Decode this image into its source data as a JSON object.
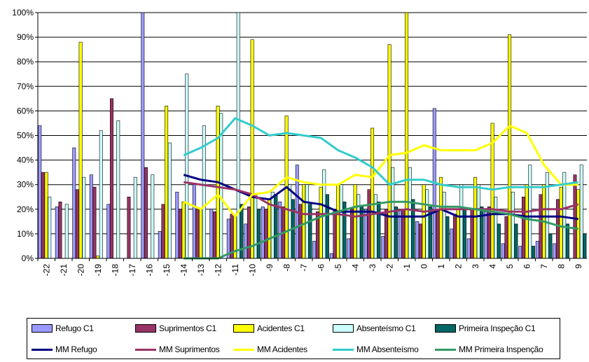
{
  "chart_data": {
    "type": "bar",
    "categories": [
      "-22",
      "-21",
      "-20",
      "-19",
      "-18",
      "-17",
      "-16",
      "-15",
      "-14",
      "-13",
      "-12",
      "-11",
      "-10",
      "-9",
      "-8",
      "-7",
      "-6",
      "-5",
      "-4",
      "-3",
      "-2",
      "-1",
      "0",
      "1",
      "2",
      "3",
      "4",
      "5",
      "6",
      "7",
      "8",
      "9"
    ],
    "y_ticks": [
      "0%",
      "10%",
      "20%",
      "30%",
      "40%",
      "50%",
      "60%",
      "70%",
      "80%",
      "90%",
      "100%"
    ],
    "ylim": [
      0,
      1
    ],
    "grid": true,
    "legend_position": "bottom",
    "series": [
      {
        "name": "Refugo C1",
        "kind": "bar",
        "color": "#9999ff",
        "values": [
          0.54,
          0.21,
          0.45,
          0.34,
          0.22,
          null,
          1.0,
          0.11,
          0.27,
          0.3,
          0.2,
          0.16,
          0.14,
          0.21,
          0.23,
          0.38,
          0.07,
          0.02,
          0.08,
          0.2,
          0.09,
          0.2,
          0.15,
          0.61,
          0.12,
          0.08,
          0.19,
          0.06,
          0.05,
          0.07,
          0.06,
          null
        ]
      },
      {
        "name": "Suprimentos C1",
        "kind": "bar",
        "color": "#993366",
        "values": [
          0.35,
          0.23,
          0.28,
          0.29,
          0.65,
          0.25,
          0.37,
          0.22,
          0.2,
          0.2,
          0.19,
          0.18,
          0.21,
          0.2,
          0.21,
          0.22,
          0.19,
          0.2,
          0.2,
          0.28,
          0.2,
          0.2,
          0.14,
          0.2,
          0.18,
          0.2,
          0.21,
          0.17,
          0.25,
          0.26,
          0.24,
          0.34
        ]
      },
      {
        "name": "Acidentes C1",
        "kind": "bar",
        "color": "#ffff00",
        "values": [
          0.35,
          null,
          0.88,
          0.01,
          null,
          null,
          null,
          0.62,
          0.23,
          0.2,
          0.62,
          0.17,
          0.89,
          0.24,
          0.58,
          0.3,
          0.29,
          0.3,
          0.3,
          0.53,
          0.87,
          1.0,
          0.3,
          0.33,
          0.2,
          0.33,
          0.55,
          0.91,
          0.3,
          0.3,
          0.29,
          0.28
        ]
      },
      {
        "name": "Absenteísmo C1",
        "kind": "bar",
        "color": "#ccffff",
        "values": [
          0.25,
          0.22,
          0.33,
          0.52,
          0.56,
          0.33,
          0.34,
          0.47,
          0.75,
          0.54,
          0.59,
          1.0,
          0.26,
          0.27,
          0.3,
          0.3,
          0.36,
          0.3,
          0.26,
          0.26,
          0.37,
          0.37,
          0.28,
          0.27,
          0.3,
          0.3,
          0.25,
          0.27,
          0.38,
          0.35,
          0.35,
          0.38
        ]
      },
      {
        "name": "Primeira Inspeção C1",
        "kind": "bar",
        "color": "#006666",
        "values": [
          null,
          null,
          null,
          null,
          null,
          null,
          null,
          null,
          null,
          null,
          null,
          0.22,
          0.2,
          0.26,
          0.24,
          0.22,
          0.26,
          0.23,
          0.21,
          0.23,
          0.21,
          0.24,
          0.21,
          0.17,
          0.2,
          0.21,
          0.14,
          0.14,
          0.05,
          0.1,
          0.14,
          0.1
        ]
      },
      {
        "name": "MM Refugo",
        "kind": "line",
        "color": "#000080",
        "values": [
          null,
          null,
          null,
          null,
          null,
          null,
          null,
          null,
          0.34,
          0.32,
          0.31,
          0.28,
          0.25,
          0.24,
          0.29,
          0.23,
          0.22,
          0.19,
          0.19,
          0.19,
          0.17,
          0.17,
          0.17,
          0.2,
          0.17,
          0.17,
          0.18,
          0.18,
          0.17,
          0.17,
          0.17,
          0.16
        ]
      },
      {
        "name": "MM Suprimentos",
        "kind": "line",
        "color": "#993366",
        "values": [
          null,
          null,
          null,
          null,
          null,
          null,
          null,
          null,
          0.31,
          0.3,
          0.29,
          0.28,
          0.26,
          0.22,
          0.2,
          0.18,
          0.18,
          0.18,
          0.17,
          0.18,
          0.19,
          0.2,
          0.19,
          0.2,
          0.2,
          0.2,
          0.2,
          0.19,
          0.19,
          0.2,
          0.2,
          0.22
        ]
      },
      {
        "name": "MM Acidentes",
        "kind": "line",
        "color": "#ffff00",
        "values": [
          null,
          null,
          null,
          null,
          null,
          null,
          null,
          null,
          0.23,
          0.2,
          0.26,
          0.17,
          0.26,
          0.27,
          0.33,
          0.31,
          0.3,
          0.3,
          0.34,
          0.33,
          0.42,
          0.43,
          0.46,
          0.44,
          0.44,
          0.44,
          0.47,
          0.54,
          0.51,
          0.38,
          0.3,
          0.3
        ]
      },
      {
        "name": "MM Absenteísmo",
        "kind": "line",
        "color": "#33cccc",
        "values": [
          null,
          null,
          null,
          null,
          null,
          null,
          null,
          null,
          0.42,
          0.45,
          0.49,
          0.57,
          0.54,
          0.5,
          0.51,
          0.5,
          0.49,
          0.44,
          0.41,
          0.37,
          0.3,
          0.32,
          0.32,
          0.3,
          0.29,
          0.29,
          0.28,
          0.29,
          0.29,
          0.29,
          0.3,
          0.31
        ]
      },
      {
        "name": "MM Primeira Inspenção",
        "kind": "line",
        "color": "#339966",
        "values": [
          null,
          null,
          null,
          null,
          null,
          null,
          null,
          null,
          0.0,
          0.0,
          0.0,
          0.03,
          0.05,
          0.08,
          0.11,
          0.14,
          0.17,
          0.19,
          0.21,
          0.22,
          0.23,
          0.23,
          0.22,
          0.21,
          0.21,
          0.2,
          0.19,
          0.18,
          0.16,
          0.15,
          0.13,
          0.12
        ]
      }
    ]
  }
}
